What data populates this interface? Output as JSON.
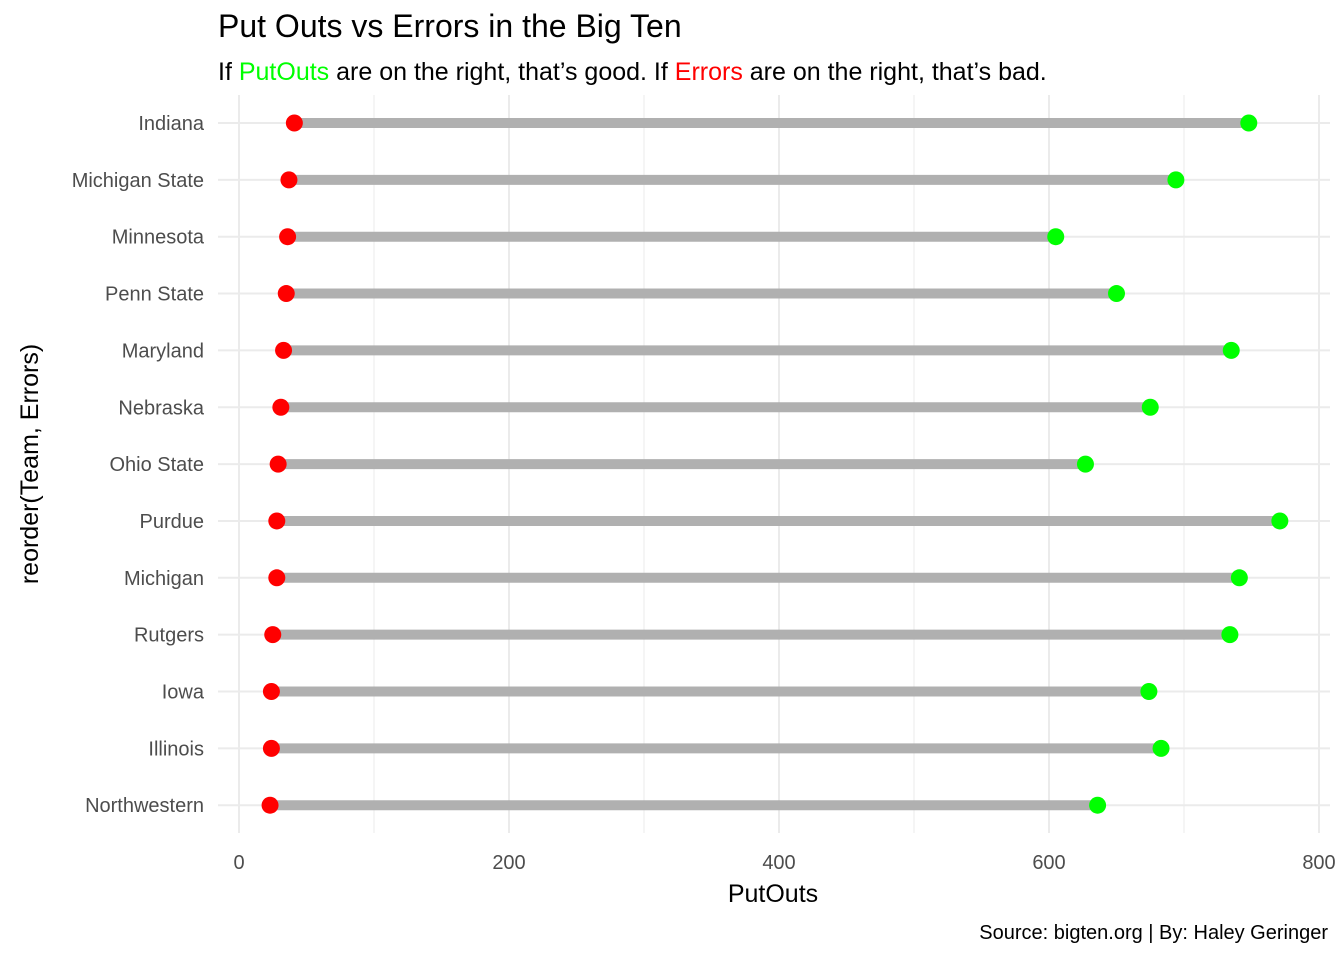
{
  "title": "Put Outs vs Errors in the Big Ten",
  "subtitle": {
    "part1": "If ",
    "putouts_word": "PutOuts",
    "part2": " are on the right, that’s good. If ",
    "errors_word": "Errors",
    "part3": " are on the right, that’s bad."
  },
  "caption": "Source: bigten.org | By: Haley Geringer",
  "colors": {
    "putouts": "#00ff00",
    "errors": "#ff0000",
    "segment": "#b0b0b0",
    "grid": "#ebebeb"
  },
  "chart_data": {
    "type": "dumbbell",
    "xlabel": "PutOuts",
    "ylabel": "reorder(Team, Errors)",
    "xlim": [
      0,
      800
    ],
    "x_ticks": [
      0,
      200,
      400,
      600,
      800
    ],
    "grid": true,
    "categories": [
      "Indiana",
      "Michigan State",
      "Minnesota",
      "Penn State",
      "Maryland",
      "Nebraska",
      "Ohio State",
      "Purdue",
      "Michigan",
      "Rutgers",
      "Iowa",
      "Illinois",
      "Northwestern"
    ],
    "series": [
      {
        "name": "Errors",
        "values": [
          41,
          37,
          36,
          35,
          33,
          31,
          29,
          28,
          28,
          25,
          24,
          24,
          23
        ]
      },
      {
        "name": "PutOuts",
        "values": [
          748,
          694,
          605,
          650,
          735,
          675,
          627,
          771,
          741,
          734,
          674,
          683,
          636
        ]
      }
    ]
  }
}
